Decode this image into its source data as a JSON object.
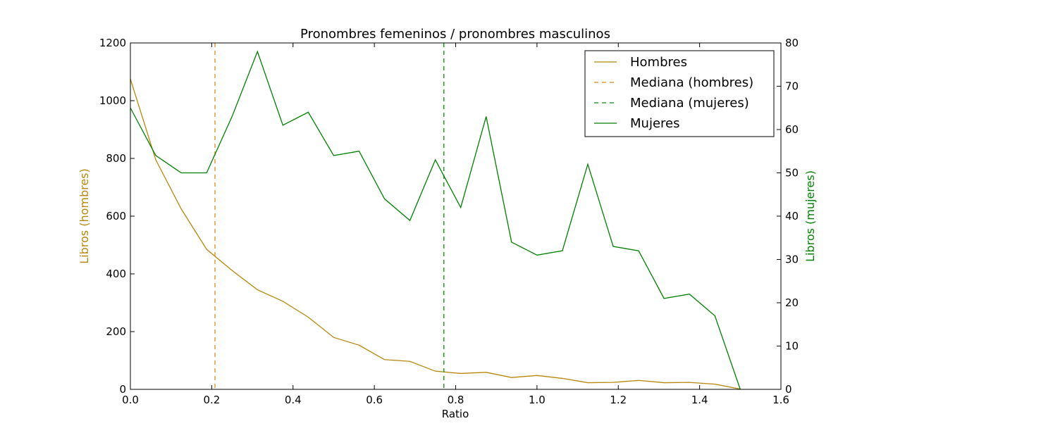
{
  "chart_data": {
    "type": "line",
    "title": "Pronombres femeninos / pronombres masculinos",
    "xlabel": "Ratio",
    "ylabel_left": "Libros (hombres)",
    "ylabel_right": "Libros (mujeres)",
    "xlim": [
      0.0,
      1.6
    ],
    "ylim_left": [
      0,
      1200
    ],
    "ylim_right": [
      0,
      80
    ],
    "x_ticks": [
      "0.0",
      "0.2",
      "0.4",
      "0.6",
      "0.8",
      "1.0",
      "1.2",
      "1.4",
      "1.6"
    ],
    "y_left_ticks": [
      "0",
      "200",
      "400",
      "600",
      "800",
      "1000",
      "1200"
    ],
    "y_right_ticks": [
      "0",
      "10",
      "20",
      "30",
      "40",
      "50",
      "60",
      "70",
      "80"
    ],
    "legend_position": "top-right",
    "grid": false,
    "series": [
      {
        "name": "Hombres",
        "axis": "left",
        "color": "#b8860b",
        "style": "solid",
        "x": [
          0.0,
          0.0625,
          0.125,
          0.1875,
          0.25,
          0.3125,
          0.375,
          0.4375,
          0.5,
          0.5625,
          0.625,
          0.6875,
          0.75,
          0.8125,
          0.875,
          0.9375,
          1.0,
          1.0625,
          1.125,
          1.1875,
          1.25,
          1.3125,
          1.375,
          1.4375,
          1.5
        ],
        "values": [
          1075,
          795,
          625,
          485,
          412,
          345,
          305,
          250,
          180,
          153,
          103,
          97,
          63,
          55,
          59,
          41,
          48,
          38,
          23,
          24,
          31,
          23,
          24,
          18,
          1
        ]
      },
      {
        "name": "Mediana (hombres)",
        "axis": "left",
        "color": "#e08a10",
        "style": "dashed",
        "x_value": 0.208
      },
      {
        "name": "Mediana (mujeres)",
        "axis": "right",
        "color": "#0a8a0a",
        "style": "dashed",
        "x_value": 0.771
      },
      {
        "name": "Mujeres",
        "axis": "right",
        "color": "#008000",
        "style": "solid",
        "x": [
          0.0,
          0.0625,
          0.125,
          0.1875,
          0.25,
          0.3125,
          0.375,
          0.4375,
          0.5,
          0.5625,
          0.625,
          0.6875,
          0.75,
          0.8125,
          0.875,
          0.9375,
          1.0,
          1.0625,
          1.125,
          1.1875,
          1.25,
          1.3125,
          1.375,
          1.4375,
          1.5
        ],
        "values": [
          65,
          54,
          50,
          50,
          63,
          78,
          61,
          64,
          54,
          55,
          44,
          39,
          53,
          42,
          63,
          34,
          31,
          32,
          52,
          33,
          32,
          21,
          22,
          17,
          0
        ]
      }
    ]
  }
}
